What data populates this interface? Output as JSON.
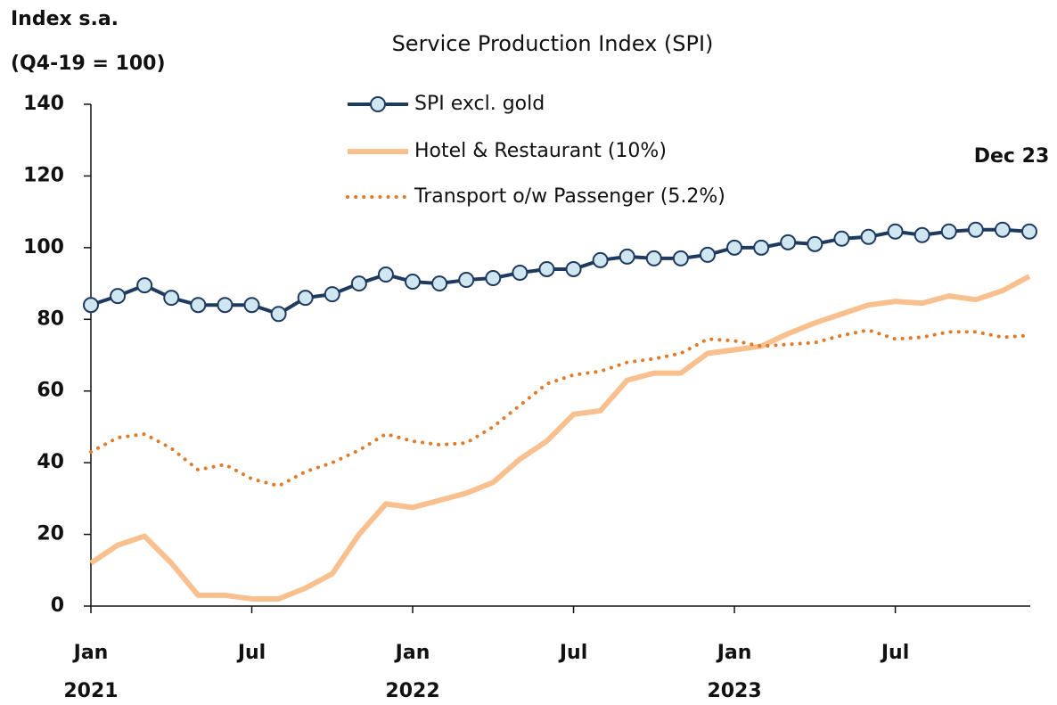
{
  "chart_data": {
    "type": "line",
    "title": "Service Production Index (SPI)",
    "y_label_lines": [
      "Index s.a.",
      "(Q4-19 = 100)"
    ],
    "annotation": "Dec 23",
    "categories": [
      "Jan",
      null,
      null,
      null,
      null,
      null,
      "Jul",
      null,
      null,
      null,
      null,
      null,
      "Jan",
      null,
      null,
      null,
      null,
      null,
      "Jul",
      null,
      null,
      null,
      null,
      null,
      "Jan",
      null,
      null,
      null,
      null,
      null,
      "Jul",
      null,
      null,
      null,
      null,
      null
    ],
    "years": [
      "2021",
      "2022",
      "2023"
    ],
    "ylim": [
      0,
      140
    ],
    "yticks": [
      0,
      20,
      40,
      60,
      80,
      100,
      120,
      140
    ],
    "series": [
      {
        "name": "SPI excl. gold",
        "color": "#1f3a5f",
        "marker_fill": "#d0e6f0",
        "style": "solid-marker",
        "values": [
          84,
          86.5,
          89.5,
          86,
          84,
          84,
          84,
          81.5,
          86,
          87,
          90,
          92.5,
          90.5,
          90,
          91,
          91.5,
          93,
          94,
          94,
          96.5,
          97.5,
          97,
          97,
          98,
          100,
          100,
          101.5,
          101,
          102.5,
          103,
          104.5,
          103.5,
          104.5,
          105,
          105,
          104.5
        ]
      },
      {
        "name": "Hotel & Restaurant (10%)",
        "color": "#f8c08e",
        "style": "thick",
        "values": [
          12,
          17,
          19.5,
          12,
          3,
          3,
          2,
          2,
          5,
          9,
          20,
          28.5,
          27.5,
          29.5,
          31.5,
          34.5,
          41,
          46,
          53.5,
          54.5,
          63,
          65,
          65,
          70.5,
          71.5,
          72.5,
          76,
          79,
          81.5,
          84,
          85,
          84.5,
          86.5,
          85.5,
          88,
          92
        ]
      },
      {
        "name": "Transport o/w Passenger (5.2%)",
        "color": "#e07b28",
        "style": "dotted",
        "values": [
          43,
          47,
          48,
          44,
          38,
          39.5,
          35.5,
          33.5,
          37.5,
          40,
          43.5,
          48,
          46,
          45,
          45.5,
          50,
          56,
          62,
          64.5,
          65.5,
          68,
          69,
          70.5,
          74.5,
          74,
          72.5,
          73,
          73.5,
          75.5,
          77,
          74.5,
          75,
          76.5,
          76.5,
          75,
          75.5
        ]
      }
    ]
  }
}
